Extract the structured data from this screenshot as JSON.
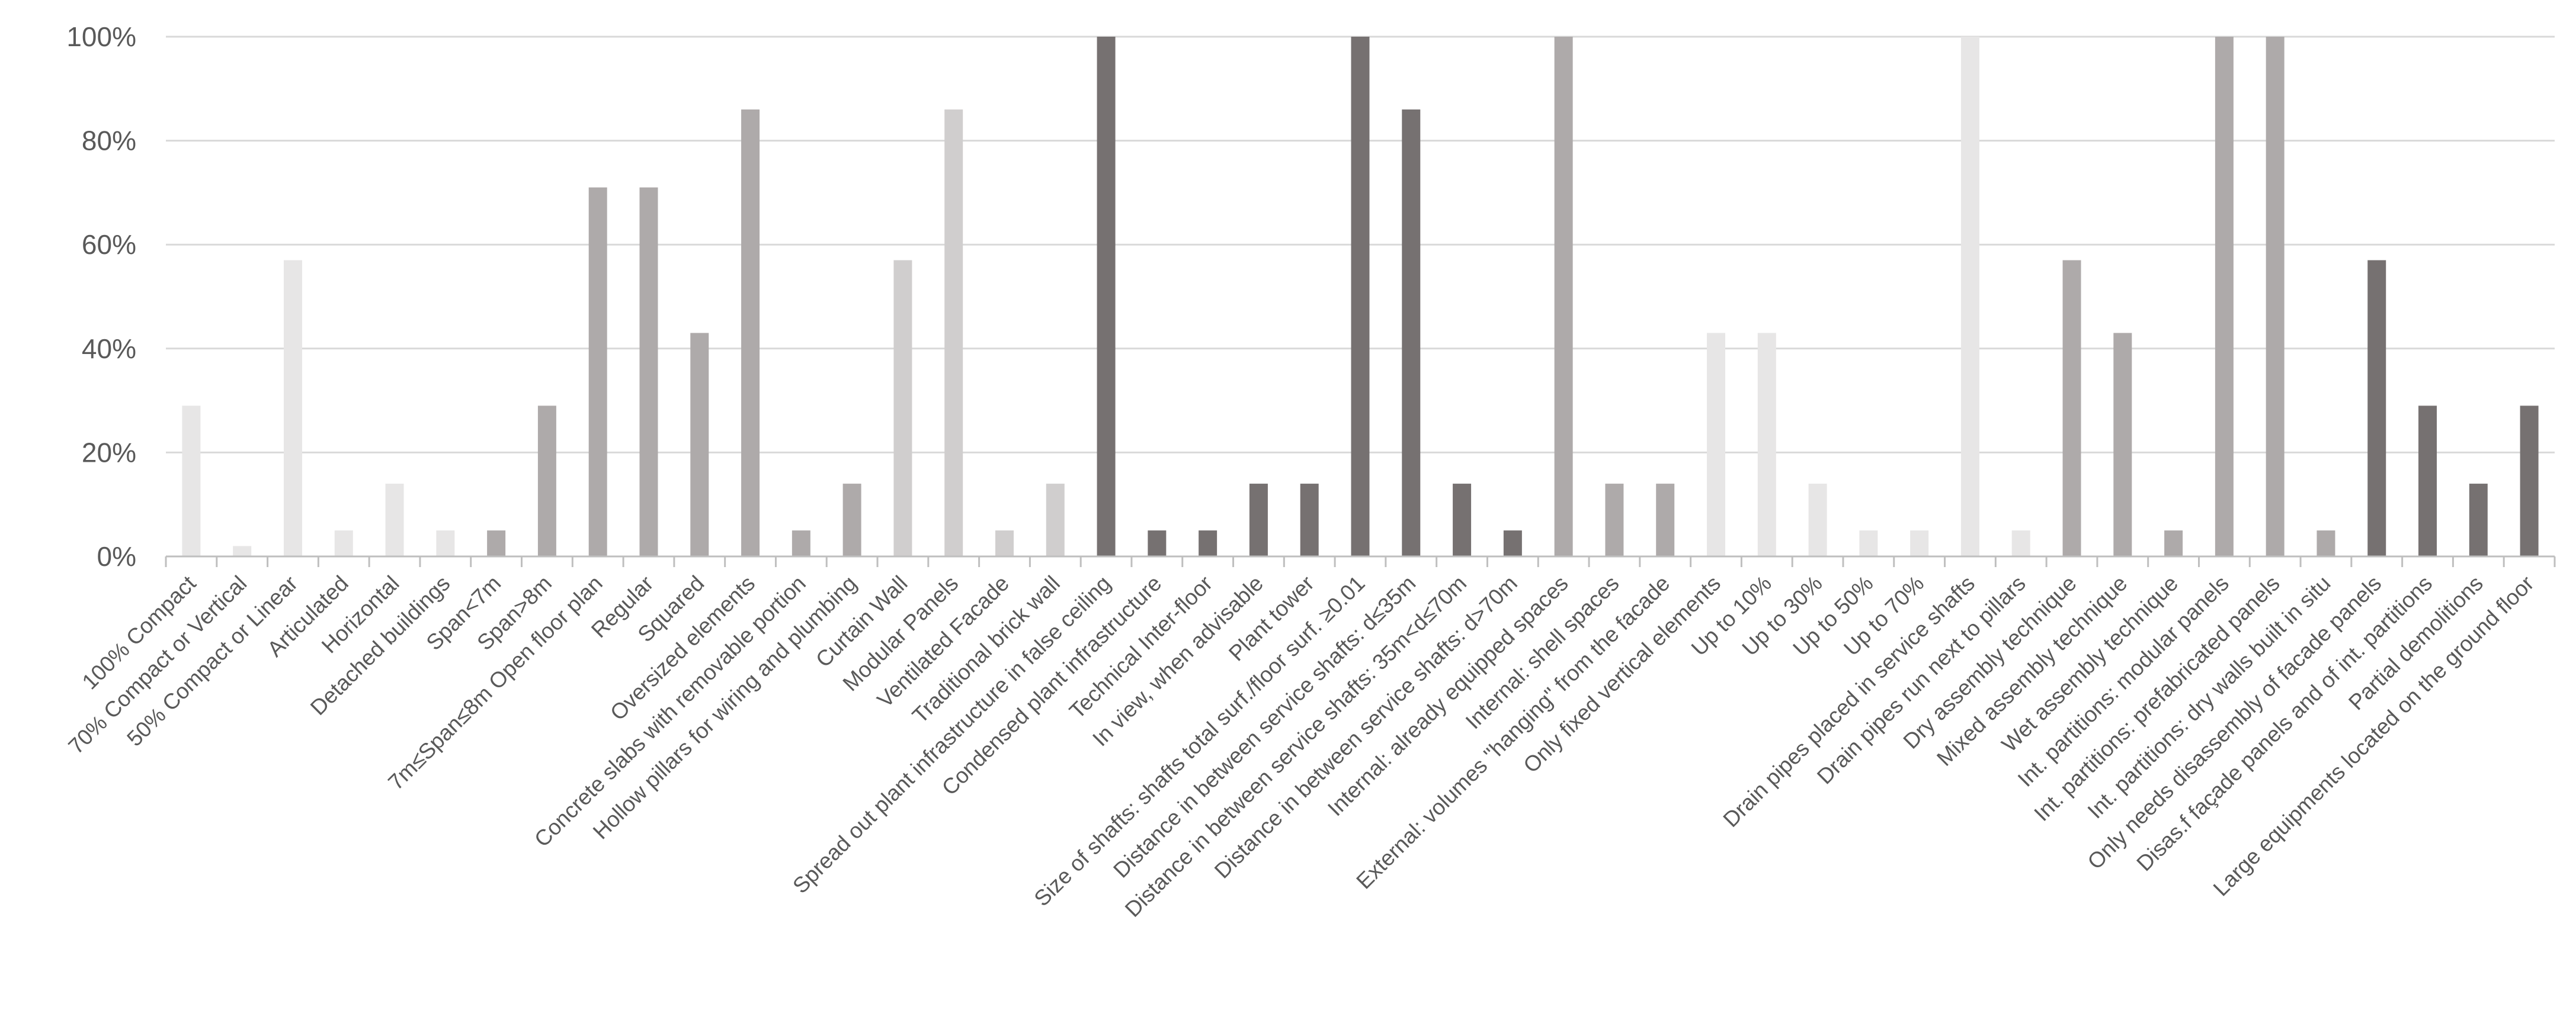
{
  "chart_data": {
    "type": "bar",
    "title": "",
    "xlabel": "",
    "ylabel": "",
    "ylim": [
      0,
      100
    ],
    "ytick_labels": [
      "0%",
      "20%",
      "40%",
      "60%",
      "80%",
      "100%"
    ],
    "grid": true,
    "legend": "none",
    "categories": [
      "100% Compact",
      "70% Compact or Vertical",
      "50% Compact or Linear",
      "Articulated",
      "Horizontal",
      "Detached buildings",
      "Span<7m",
      "Span>8m",
      "7m≤Span≤8m Open floor plan",
      "Regular",
      "Squared",
      "Oversized elements",
      "Concrete slabs with removable portion",
      "Hollow pillars for wiring and plumbing",
      "Curtain Wall",
      "Modular Panels",
      "Ventilated Facade",
      "Traditional brick wall",
      "Spread out plant infrastructure in false ceiling",
      "Condensed plant infrastructure",
      "Technical Inter-floor",
      "In view, when advisable",
      "Plant tower",
      "Size of shafts: shafts total surf./floor surf. ≥0.01",
      "Distance in between service shafts: d≤35m",
      "Distance in between service shafts: 35m<d≤70m",
      "Distance in between service shafts: d>70m",
      "Internal: already equipped spaces",
      "Internal: shell spaces",
      "External: volumes \"hanging\" from the facade",
      "Only fixed vertical elements",
      "Up to 10%",
      "Up to 30%",
      "Up to 50%",
      "Up to 70%",
      "Drain pipes placed in service shafts",
      "Drain pipes run next to pillars",
      "Dry assembly technique",
      "Mixed assembly technique",
      "Wet assembly technique",
      "Int. partitions: modular panels",
      "Int. partitions: prefabricated panels",
      "Int. partitions: dry walls built in situ",
      "Only needs disassembly of facade panels",
      "Disas.f façade panels and of int. partitions",
      "Partial demolitions",
      "Large equipments located on the ground floor"
    ],
    "values": [
      29,
      2,
      57,
      5,
      14,
      5,
      5,
      29,
      71,
      71,
      43,
      86,
      5,
      14,
      57,
      86,
      5,
      14,
      100,
      5,
      5,
      14,
      14,
      100,
      86,
      14,
      5,
      100,
      14,
      14,
      43,
      43,
      14,
      5,
      5,
      100,
      5,
      57,
      43,
      5,
      100,
      100,
      5,
      57,
      29,
      14,
      29
    ],
    "bar_colors": [
      "#e7e6e6",
      "#e7e6e6",
      "#e7e6e6",
      "#e7e6e6",
      "#e7e6e6",
      "#e7e6e6",
      "#aeaaaa",
      "#aeaaaa",
      "#aeaaaa",
      "#aeaaaa",
      "#aeaaaa",
      "#aeaaaa",
      "#aeaaaa",
      "#aeaaaa",
      "#d0cece",
      "#d0cece",
      "#d0cece",
      "#d0cece",
      "#767171",
      "#767171",
      "#767171",
      "#767171",
      "#767171",
      "#767171",
      "#767171",
      "#767171",
      "#767171",
      "#aeaaaa",
      "#aeaaaa",
      "#aeaaaa",
      "#e7e6e6",
      "#e7e6e6",
      "#e7e6e6",
      "#e7e6e6",
      "#e7e6e6",
      "#e7e6e6",
      "#e7e6e6",
      "#aeaaaa",
      "#aeaaaa",
      "#aeaaaa",
      "#aeaaaa",
      "#aeaaaa",
      "#aeaaaa",
      "#767171",
      "#767171",
      "#767171",
      "#767171"
    ]
  }
}
